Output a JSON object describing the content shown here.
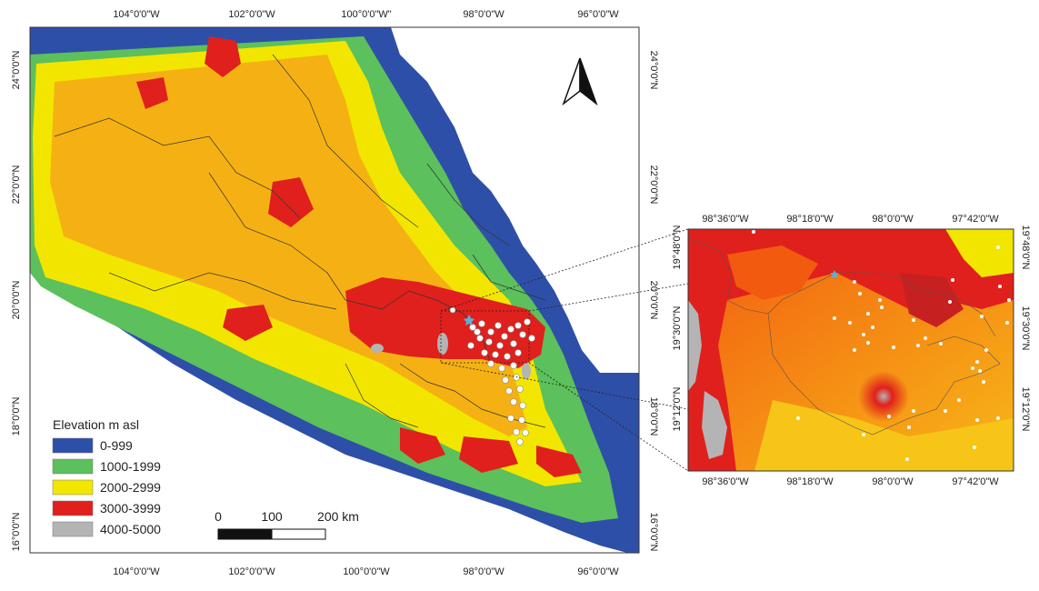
{
  "main_map": {
    "top_ticks": [
      "104°0'0\"W",
      "102°0'0\"W",
      "100°0'0\"W\"",
      "98°0'0\"W",
      "96°0'0\"W"
    ],
    "bottom_ticks": [
      "104°0'0\"W",
      "102°0'0\"W",
      "100°0'0\"W",
      "98°0'0\"W",
      "96°0'0\"W"
    ],
    "left_ticks": [
      "24°0'0\"N",
      "22°0'0\"N",
      "20°0'0\"N",
      "18°0'0\"N",
      "16°0'0\"N"
    ],
    "right_ticks": [
      "24°0'0\"N",
      "22°0'0\"N",
      "20°0'0\"N",
      "18°0'0\"N",
      "16°0'0\"N"
    ]
  },
  "inset_map": {
    "top_ticks": [
      "98°36'0\"W",
      "98°18'0\"W",
      "98°0'0\"W",
      "97°42'0\"W"
    ],
    "bottom_ticks": [
      "98°36'0\"W",
      "98°18'0\"W",
      "98°0'0\"W",
      "97°42'0\"W"
    ],
    "left_ticks": [
      "19°48'0\"N",
      "19°30'0\"N",
      "19°12'0\"N"
    ],
    "right_ticks": [
      "19°48'0\"N",
      "19°30'0\"N",
      "19°12'0\"N"
    ]
  },
  "legend": {
    "title": "Elevation m asl",
    "items": [
      {
        "label": "0-999",
        "color": "#2e4fa8"
      },
      {
        "label": "1000-1999",
        "color": "#5cc05c"
      },
      {
        "label": "2000-2999",
        "color": "#f2e600"
      },
      {
        "label": "3000-3999",
        "color": "#e0201c"
      },
      {
        "label": "4000-5000",
        "color": "#b4b4b4"
      }
    ]
  },
  "scale_bar": {
    "labels": [
      "0",
      "100",
      "200 km"
    ]
  },
  "north_arrow": {
    "icon": "north-arrow-icon"
  }
}
